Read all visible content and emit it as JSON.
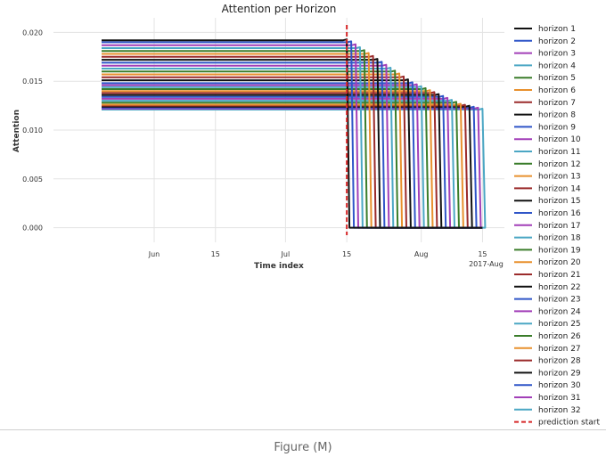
{
  "chart_data": {
    "type": "line",
    "title": "Attention per Horizon",
    "xlabel": "Time index",
    "ylabel": "Attention",
    "ylim": [
      -0.0015,
      0.0215
    ],
    "yticks": [
      0.0,
      0.005,
      0.01,
      0.015,
      0.02
    ],
    "ytick_labels": [
      "0.000",
      "0.005",
      "0.010",
      "0.015",
      "0.020"
    ],
    "xlim": [
      "2017-05-09",
      "2017-08-20"
    ],
    "xticks": [
      "2017-06-01",
      "2017-06-15",
      "2017-07-01",
      "2017-07-15",
      "2017-08-01",
      "2017-08-15"
    ],
    "xtick_labels": [
      "Jun",
      "15",
      "Jul",
      "15",
      "Aug",
      "15"
    ],
    "xtick_sublabel": "2017-Aug",
    "grid": true,
    "legend": "outside-right",
    "x_start": "2017-05-20",
    "prediction_start": "2017-07-15",
    "prediction_start_color": "#d62728",
    "series": [
      {
        "name": "horizon 1",
        "color": "#111111",
        "plateau": 0.0192,
        "drop": "2017-07-15",
        "end": 0.0,
        "x_end": "2017-08-15"
      },
      {
        "name": "horizon 2",
        "color": "#2f55c8",
        "plateau": 0.019,
        "drop": "2017-07-16",
        "end": 0.0,
        "x_end": "2017-08-15"
      },
      {
        "name": "horizon 3",
        "color": "#a23fb8",
        "plateau": 0.0187,
        "drop": "2017-07-17",
        "end": 0.0,
        "x_end": "2017-08-15"
      },
      {
        "name": "horizon 4",
        "color": "#4ba7c4",
        "plateau": 0.0184,
        "drop": "2017-07-18",
        "end": 0.0,
        "x_end": "2017-08-15"
      },
      {
        "name": "horizon 5",
        "color": "#3a7d2a",
        "plateau": 0.0181,
        "drop": "2017-07-19",
        "end": 0.0,
        "x_end": "2017-08-15"
      },
      {
        "name": "horizon 6",
        "color": "#e8902d",
        "plateau": 0.0178,
        "drop": "2017-07-20",
        "end": 0.0,
        "x_end": "2017-08-15"
      },
      {
        "name": "horizon 7",
        "color": "#9b2b2b",
        "plateau": 0.0175,
        "drop": "2017-07-21",
        "end": 0.0,
        "x_end": "2017-08-15"
      },
      {
        "name": "horizon 8",
        "color": "#111111",
        "plateau": 0.0172,
        "drop": "2017-07-22",
        "end": 0.0,
        "x_end": "2017-08-15"
      },
      {
        "name": "horizon 9",
        "color": "#2f55c8",
        "plateau": 0.0169,
        "drop": "2017-07-23",
        "end": 0.0,
        "x_end": "2017-08-15"
      },
      {
        "name": "horizon 10",
        "color": "#a23fb8",
        "plateau": 0.0166,
        "drop": "2017-07-24",
        "end": 0.0,
        "x_end": "2017-08-15"
      },
      {
        "name": "horizon 11",
        "color": "#4ba7c4",
        "plateau": 0.0163,
        "drop": "2017-07-25",
        "end": 0.0,
        "x_end": "2017-08-15"
      },
      {
        "name": "horizon 12",
        "color": "#3a7d2a",
        "plateau": 0.016,
        "drop": "2017-07-26",
        "end": 0.0,
        "x_end": "2017-08-15"
      },
      {
        "name": "horizon 13",
        "color": "#e8902d",
        "plateau": 0.0157,
        "drop": "2017-07-27",
        "end": 0.0,
        "x_end": "2017-08-15"
      },
      {
        "name": "horizon 14",
        "color": "#9b2b2b",
        "plateau": 0.0154,
        "drop": "2017-07-28",
        "end": 0.0,
        "x_end": "2017-08-15"
      },
      {
        "name": "horizon 15",
        "color": "#111111",
        "plateau": 0.0151,
        "drop": "2017-07-29",
        "end": 0.0,
        "x_end": "2017-08-15"
      },
      {
        "name": "horizon 16",
        "color": "#2f55c8",
        "plateau": 0.0148,
        "drop": "2017-07-30",
        "end": 0.0,
        "x_end": "2017-08-15"
      },
      {
        "name": "horizon 17",
        "color": "#a23fb8",
        "plateau": 0.0146,
        "drop": "2017-07-31",
        "end": 0.0,
        "x_end": "2017-08-15"
      },
      {
        "name": "horizon 18",
        "color": "#4ba7c4",
        "plateau": 0.0144,
        "drop": "2017-08-01",
        "end": 0.0,
        "x_end": "2017-08-15"
      },
      {
        "name": "horizon 19",
        "color": "#3a7d2a",
        "plateau": 0.0142,
        "drop": "2017-08-02",
        "end": 0.0,
        "x_end": "2017-08-15"
      },
      {
        "name": "horizon 20",
        "color": "#e8902d",
        "plateau": 0.014,
        "drop": "2017-08-03",
        "end": 0.0,
        "x_end": "2017-08-15"
      },
      {
        "name": "horizon 21",
        "color": "#9b2b2b",
        "plateau": 0.0138,
        "drop": "2017-08-04",
        "end": 0.0,
        "x_end": "2017-08-15"
      },
      {
        "name": "horizon 22",
        "color": "#111111",
        "plateau": 0.0136,
        "drop": "2017-08-05",
        "end": 0.0,
        "x_end": "2017-08-15"
      },
      {
        "name": "horizon 23",
        "color": "#2f55c8",
        "plateau": 0.0134,
        "drop": "2017-08-06",
        "end": 0.0,
        "x_end": "2017-08-15"
      },
      {
        "name": "horizon 24",
        "color": "#a23fb8",
        "plateau": 0.0132,
        "drop": "2017-08-07",
        "end": 0.0,
        "x_end": "2017-08-15"
      },
      {
        "name": "horizon 25",
        "color": "#4ba7c4",
        "plateau": 0.013,
        "drop": "2017-08-08",
        "end": 0.0,
        "x_end": "2017-08-15"
      },
      {
        "name": "horizon 26",
        "color": "#3a7d2a",
        "plateau": 0.0128,
        "drop": "2017-08-09",
        "end": 0.0,
        "x_end": "2017-08-15"
      },
      {
        "name": "horizon 27",
        "color": "#e8902d",
        "plateau": 0.0126,
        "drop": "2017-08-10",
        "end": 0.0,
        "x_end": "2017-08-15"
      },
      {
        "name": "horizon 28",
        "color": "#9b2b2b",
        "plateau": 0.0125,
        "drop": "2017-08-11",
        "end": 0.0,
        "x_end": "2017-08-15"
      },
      {
        "name": "horizon 29",
        "color": "#111111",
        "plateau": 0.0124,
        "drop": "2017-08-12",
        "end": 0.0,
        "x_end": "2017-08-15"
      },
      {
        "name": "horizon 30",
        "color": "#2f55c8",
        "plateau": 0.0123,
        "drop": "2017-08-13",
        "end": 0.0,
        "x_end": "2017-08-15"
      },
      {
        "name": "horizon 31",
        "color": "#a23fb8",
        "plateau": 0.0122,
        "drop": "2017-08-14",
        "end": 0.0,
        "x_end": "2017-08-15"
      },
      {
        "name": "horizon 32",
        "color": "#4ba7c4",
        "plateau": 0.0121,
        "drop": "2017-08-15",
        "end": 0.0,
        "x_end": "2017-08-15"
      }
    ],
    "prediction_label": "prediction start"
  },
  "caption": "Figure (M)"
}
